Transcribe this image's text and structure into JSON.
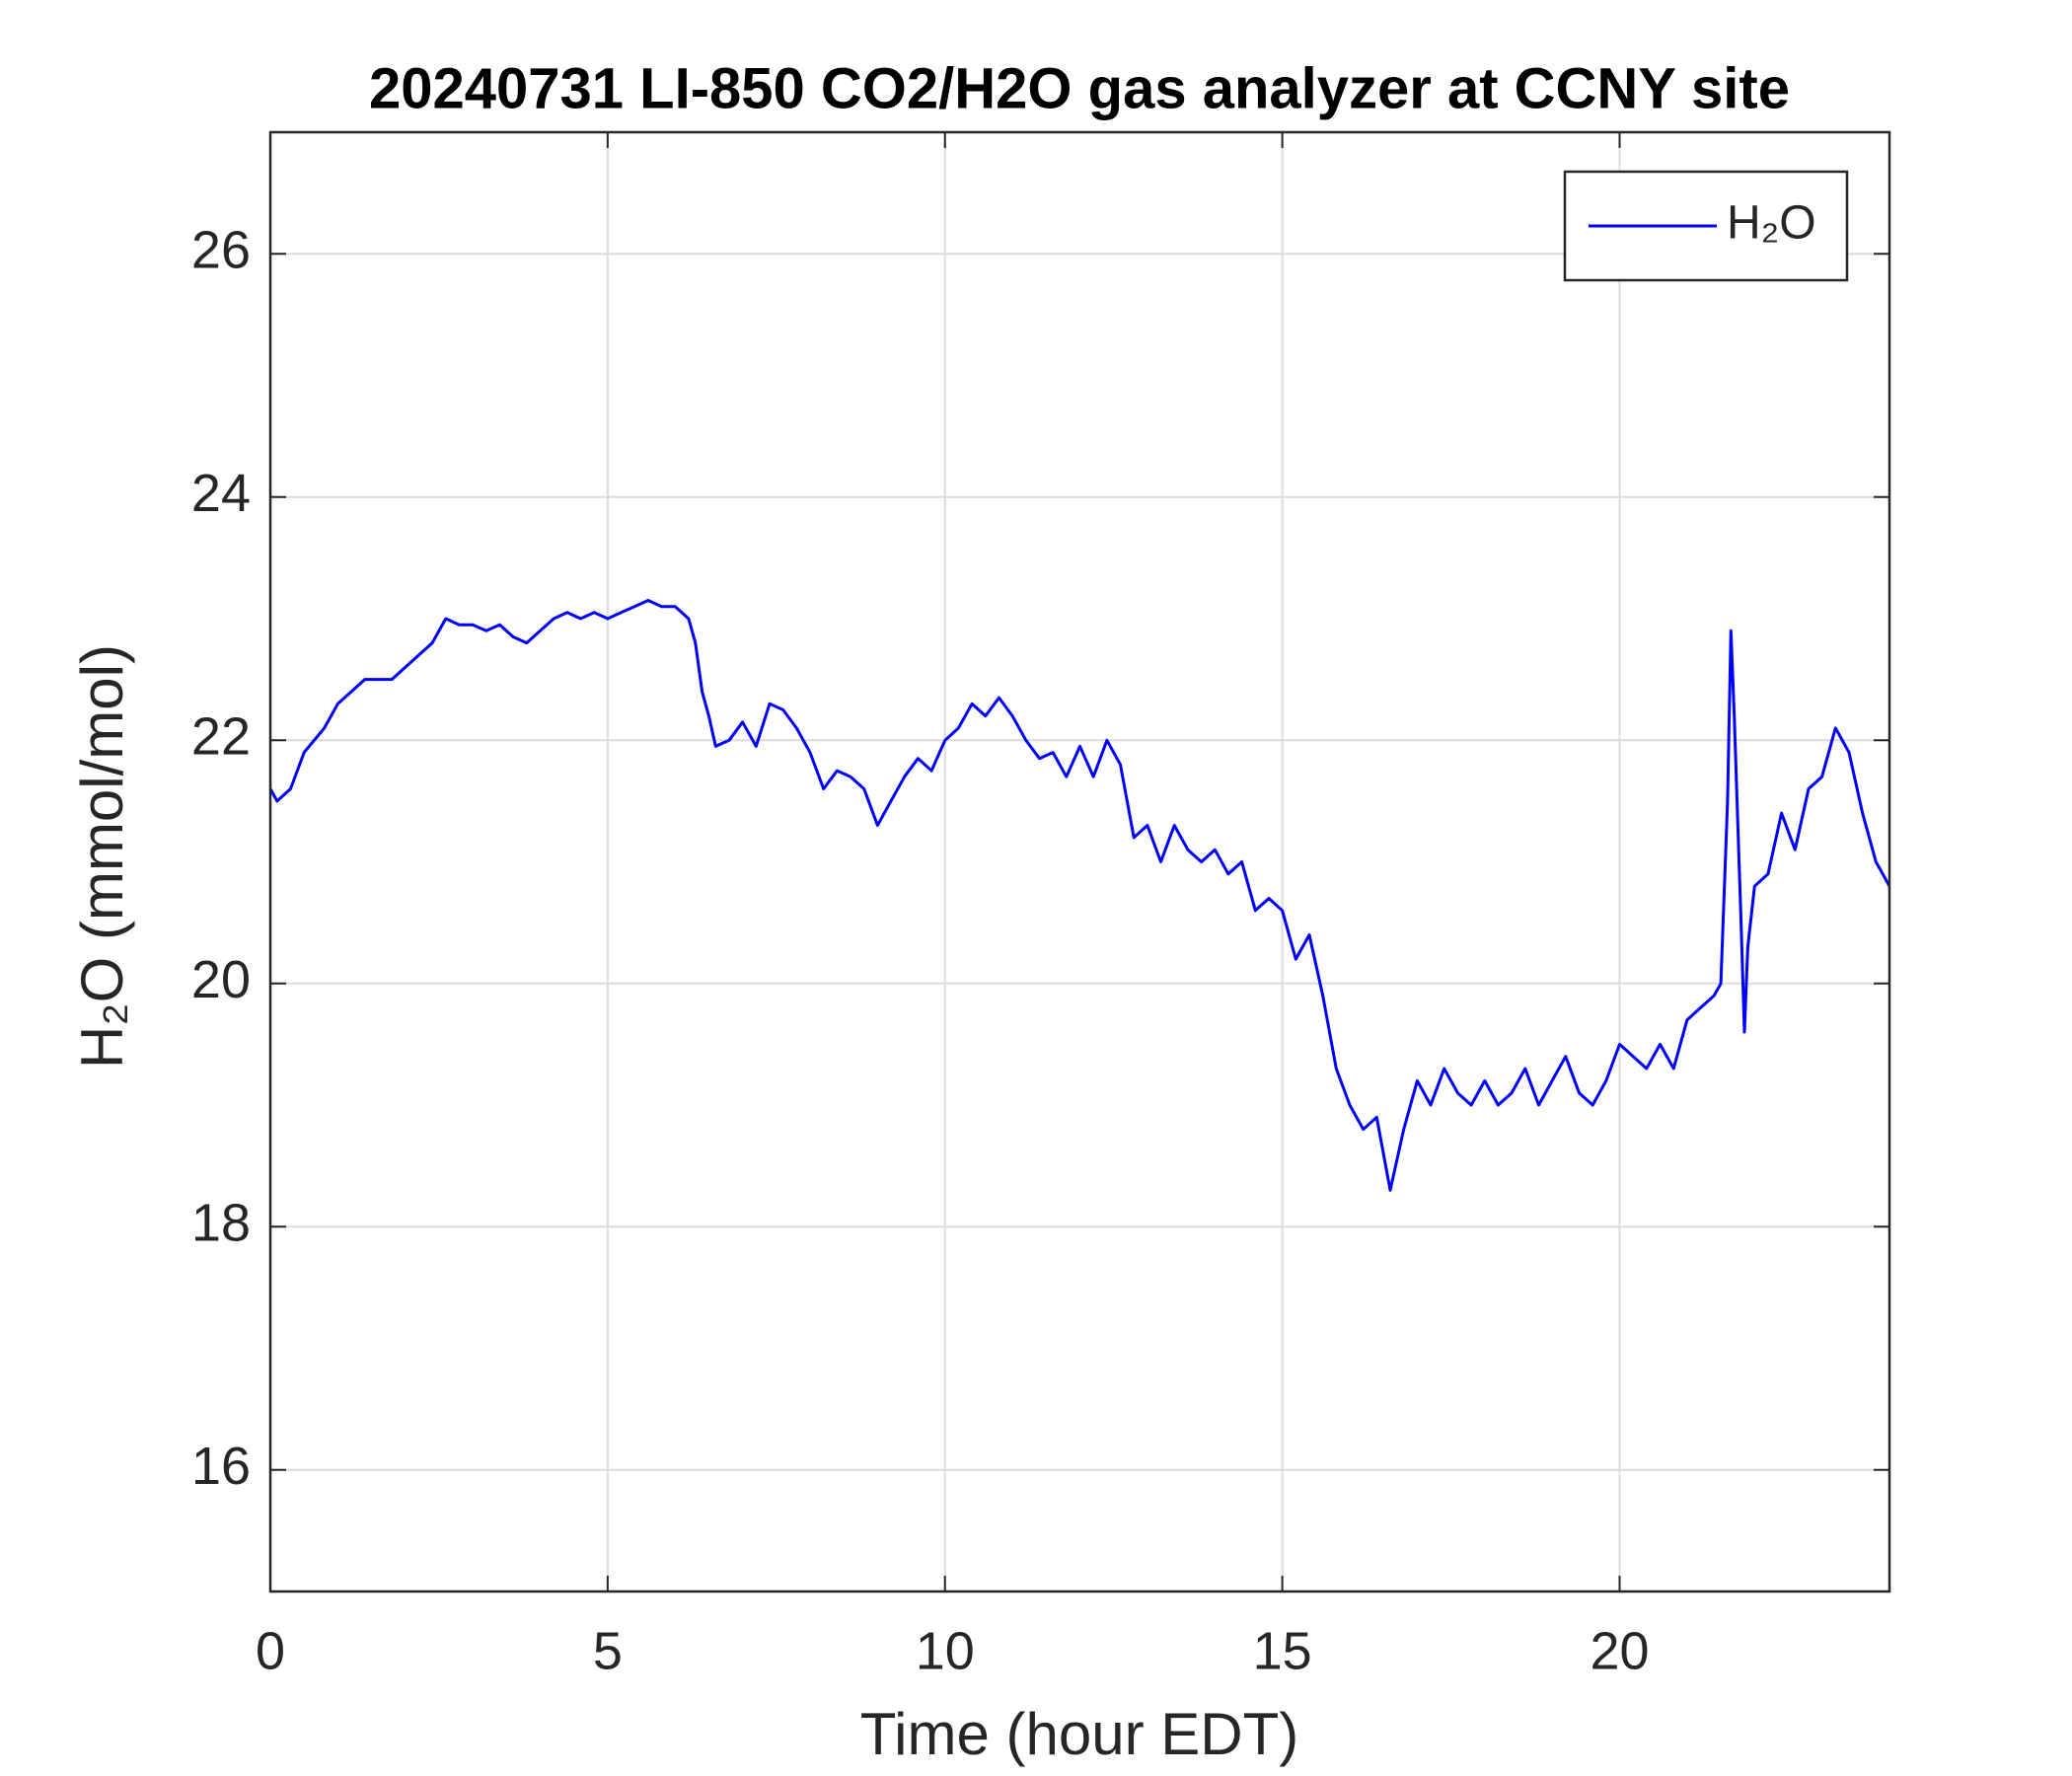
{
  "chart_data": {
    "type": "line",
    "title": "20240731 LI-850 CO2/H2O gas analyzer at CCNY site",
    "x_label": "Time (hour EDT)",
    "y_label": "H₂O (mmol/mol)",
    "xlim": [
      0,
      24
    ],
    "xticks": [
      0,
      5,
      10,
      15,
      20
    ],
    "ylim": [
      15,
      27
    ],
    "yticks": [
      16,
      18,
      20,
      22,
      24,
      26
    ],
    "grid": true,
    "legend": "upper right",
    "x": [
      0,
      0.1,
      0.3,
      0.5,
      0.8,
      1.0,
      1.2,
      1.4,
      1.6,
      1.8,
      2.0,
      2.2,
      2.4,
      2.6,
      2.8,
      3.0,
      3.2,
      3.4,
      3.6,
      3.8,
      4.0,
      4.2,
      4.4,
      4.6,
      4.8,
      5.0,
      5.2,
      5.4,
      5.6,
      5.8,
      6.0,
      6.2,
      6.3,
      6.4,
      6.5,
      6.6,
      6.8,
      7.0,
      7.2,
      7.4,
      7.6,
      7.8,
      8.0,
      8.2,
      8.4,
      8.6,
      8.8,
      9.0,
      9.2,
      9.4,
      9.6,
      9.8,
      10.0,
      10.2,
      10.4,
      10.6,
      10.8,
      11.0,
      11.2,
      11.4,
      11.6,
      11.8,
      12.0,
      12.2,
      12.4,
      12.6,
      12.8,
      13.0,
      13.2,
      13.4,
      13.6,
      13.8,
      14.0,
      14.2,
      14.4,
      14.6,
      14.8,
      15.0,
      15.2,
      15.4,
      15.6,
      15.8,
      16.0,
      16.2,
      16.4,
      16.6,
      16.8,
      17.0,
      17.2,
      17.4,
      17.6,
      17.8,
      18.0,
      18.2,
      18.4,
      18.6,
      18.8,
      19.0,
      19.2,
      19.4,
      19.6,
      19.8,
      20.0,
      20.2,
      20.4,
      20.6,
      20.8,
      21.0,
      21.2,
      21.4,
      21.5,
      21.6,
      21.65,
      21.7,
      21.8,
      21.85,
      21.9,
      22.0,
      22.2,
      22.4,
      22.6,
      22.8,
      23.0,
      23.2,
      23.4,
      23.6,
      23.8,
      24.0
    ],
    "series": [
      {
        "name": "H₂O",
        "color": "#0000ff",
        "values": [
          21.6,
          21.5,
          21.6,
          21.9,
          22.1,
          22.3,
          22.4,
          22.5,
          22.5,
          22.5,
          22.6,
          22.7,
          22.8,
          23.0,
          22.95,
          22.95,
          22.9,
          22.95,
          22.85,
          22.8,
          22.9,
          23.0,
          23.05,
          23.0,
          23.05,
          23.0,
          23.05,
          23.1,
          23.15,
          23.1,
          23.1,
          23.0,
          22.8,
          22.4,
          22.2,
          21.95,
          22.0,
          22.15,
          21.95,
          22.3,
          22.25,
          22.1,
          21.9,
          21.6,
          21.75,
          21.7,
          21.6,
          21.3,
          21.5,
          21.7,
          21.85,
          21.75,
          22.0,
          22.1,
          22.3,
          22.2,
          22.35,
          22.2,
          22.0,
          21.85,
          21.9,
          21.7,
          21.95,
          21.7,
          22.0,
          21.8,
          21.2,
          21.3,
          21.0,
          21.3,
          21.1,
          21.0,
          21.1,
          20.9,
          21.0,
          20.6,
          20.7,
          20.6,
          20.2,
          20.4,
          19.9,
          19.3,
          19.0,
          18.8,
          18.9,
          18.3,
          18.8,
          19.2,
          19.0,
          19.3,
          19.1,
          19.0,
          19.2,
          19.0,
          19.1,
          19.3,
          19.0,
          19.2,
          19.4,
          19.1,
          19.0,
          19.2,
          19.5,
          19.4,
          19.3,
          19.5,
          19.3,
          19.7,
          19.8,
          19.9,
          20.0,
          21.5,
          22.9,
          22.2,
          20.5,
          19.6,
          20.3,
          20.8,
          20.9,
          21.4,
          21.1,
          21.6,
          21.7,
          22.1,
          21.9,
          21.4,
          21.0,
          20.8
        ]
      }
    ]
  }
}
